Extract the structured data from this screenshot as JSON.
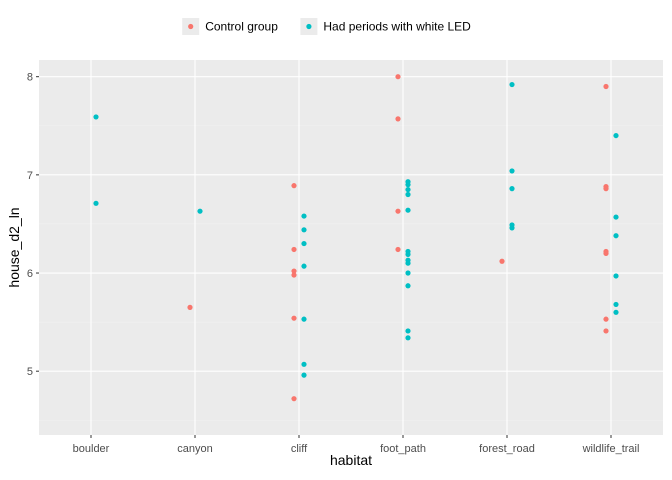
{
  "chart_data": {
    "type": "scatter",
    "title": "",
    "xlabel": "habitat",
    "ylabel": "house_d2_ln",
    "categories": [
      "boulder",
      "canyon",
      "cliff",
      "foot_path",
      "forest_road",
      "wildlife_trail"
    ],
    "ylim": [
      4.35,
      8.17
    ],
    "yticks": [
      5,
      6,
      7,
      8
    ],
    "grid": true,
    "legend_position": "top",
    "series": [
      {
        "name": "Control group",
        "color": "#F8766D",
        "points": [
          {
            "x": "canyon",
            "y": 5.65
          },
          {
            "x": "cliff",
            "y": 6.89
          },
          {
            "x": "cliff",
            "y": 6.24
          },
          {
            "x": "cliff",
            "y": 6.02
          },
          {
            "x": "cliff",
            "y": 5.98
          },
          {
            "x": "cliff",
            "y": 5.54
          },
          {
            "x": "cliff",
            "y": 4.72
          },
          {
            "x": "foot_path",
            "y": 8.0
          },
          {
            "x": "foot_path",
            "y": 7.57
          },
          {
            "x": "foot_path",
            "y": 6.63
          },
          {
            "x": "foot_path",
            "y": 6.24
          },
          {
            "x": "forest_road",
            "y": 6.12
          },
          {
            "x": "wildlife_trail",
            "y": 7.9
          },
          {
            "x": "wildlife_trail",
            "y": 6.88
          },
          {
            "x": "wildlife_trail",
            "y": 6.86
          },
          {
            "x": "wildlife_trail",
            "y": 6.22
          },
          {
            "x": "wildlife_trail",
            "y": 6.2
          },
          {
            "x": "wildlife_trail",
            "y": 5.53
          },
          {
            "x": "wildlife_trail",
            "y": 5.41
          }
        ]
      },
      {
        "name": "Had periods with white LED",
        "color": "#00BFC4",
        "points": [
          {
            "x": "boulder",
            "y": 7.59
          },
          {
            "x": "boulder",
            "y": 6.71
          },
          {
            "x": "canyon",
            "y": 6.63
          },
          {
            "x": "cliff",
            "y": 6.58
          },
          {
            "x": "cliff",
            "y": 6.44
          },
          {
            "x": "cliff",
            "y": 6.3
          },
          {
            "x": "cliff",
            "y": 6.07
          },
          {
            "x": "cliff",
            "y": 5.53
          },
          {
            "x": "cliff",
            "y": 5.07
          },
          {
            "x": "cliff",
            "y": 4.96
          },
          {
            "x": "foot_path",
            "y": 6.93
          },
          {
            "x": "foot_path",
            "y": 6.9
          },
          {
            "x": "foot_path",
            "y": 6.85
          },
          {
            "x": "foot_path",
            "y": 6.8
          },
          {
            "x": "foot_path",
            "y": 6.64
          },
          {
            "x": "foot_path",
            "y": 6.22
          },
          {
            "x": "foot_path",
            "y": 6.19
          },
          {
            "x": "foot_path",
            "y": 6.13
          },
          {
            "x": "foot_path",
            "y": 6.1
          },
          {
            "x": "foot_path",
            "y": 6.0
          },
          {
            "x": "foot_path",
            "y": 5.87
          },
          {
            "x": "foot_path",
            "y": 5.41
          },
          {
            "x": "foot_path",
            "y": 5.34
          },
          {
            "x": "forest_road",
            "y": 7.92
          },
          {
            "x": "forest_road",
            "y": 7.04
          },
          {
            "x": "forest_road",
            "y": 6.86
          },
          {
            "x": "forest_road",
            "y": 6.49
          },
          {
            "x": "forest_road",
            "y": 6.46
          },
          {
            "x": "wildlife_trail",
            "y": 7.4
          },
          {
            "x": "wildlife_trail",
            "y": 6.57
          },
          {
            "x": "wildlife_trail",
            "y": 6.38
          },
          {
            "x": "wildlife_trail",
            "y": 5.97
          },
          {
            "x": "wildlife_trail",
            "y": 5.68
          },
          {
            "x": "wildlife_trail",
            "y": 5.6
          }
        ]
      }
    ]
  },
  "colors": {
    "panel_background": "#EBEBEB",
    "grid_major": "#FFFFFF",
    "grid_minor": "#F2F2F2"
  }
}
